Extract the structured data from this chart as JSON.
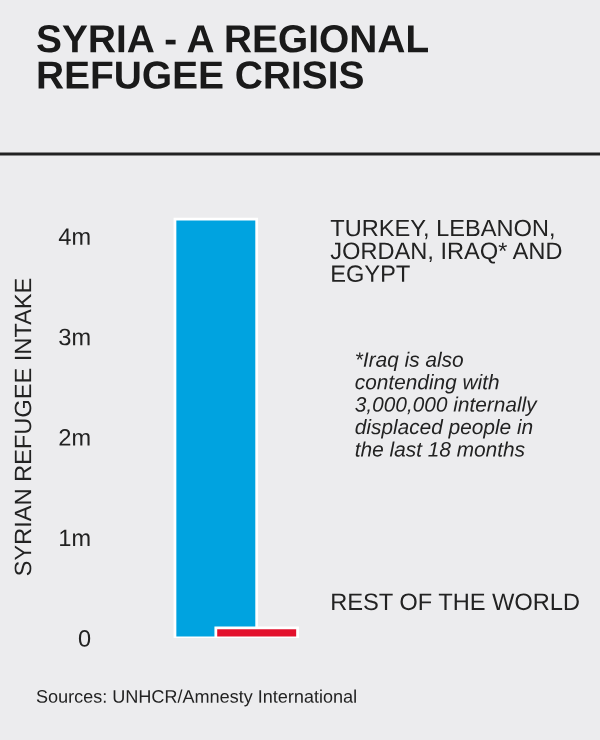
{
  "chart_data": {
    "type": "bar",
    "title": "SYRIA - A REGIONAL\nREFUGEE CRISIS",
    "ylabel": "SYRIAN REFUGEE INTAKE",
    "categories": [
      null
    ],
    "series": [
      {
        "name": "TURKEY, LEBANON,\nJORDAN, IRAQ* AND\nEGYPT",
        "color": "#00a3e0",
        "values": [
          4.17
        ]
      },
      {
        "name": "REST OF THE WORLD",
        "color": "#e3102c",
        "values": [
          0.1
        ]
      }
    ],
    "ylim": [
      0,
      4.2
    ],
    "yticks": [
      0,
      {
        "value": 1,
        "label": "1m"
      },
      {
        "value": 2,
        "label": "2m"
      },
      {
        "value": 3,
        "label": "3m"
      },
      {
        "value": 4,
        "label": "4m"
      }
    ],
    "grid": false,
    "legend": false,
    "annotations": [
      "*Iraq is also\ncontending with\n3,000,000 internally\ndisplaced people in\nthe last 18 months",
      "Sources: UNHCR/Amnesty International"
    ]
  }
}
